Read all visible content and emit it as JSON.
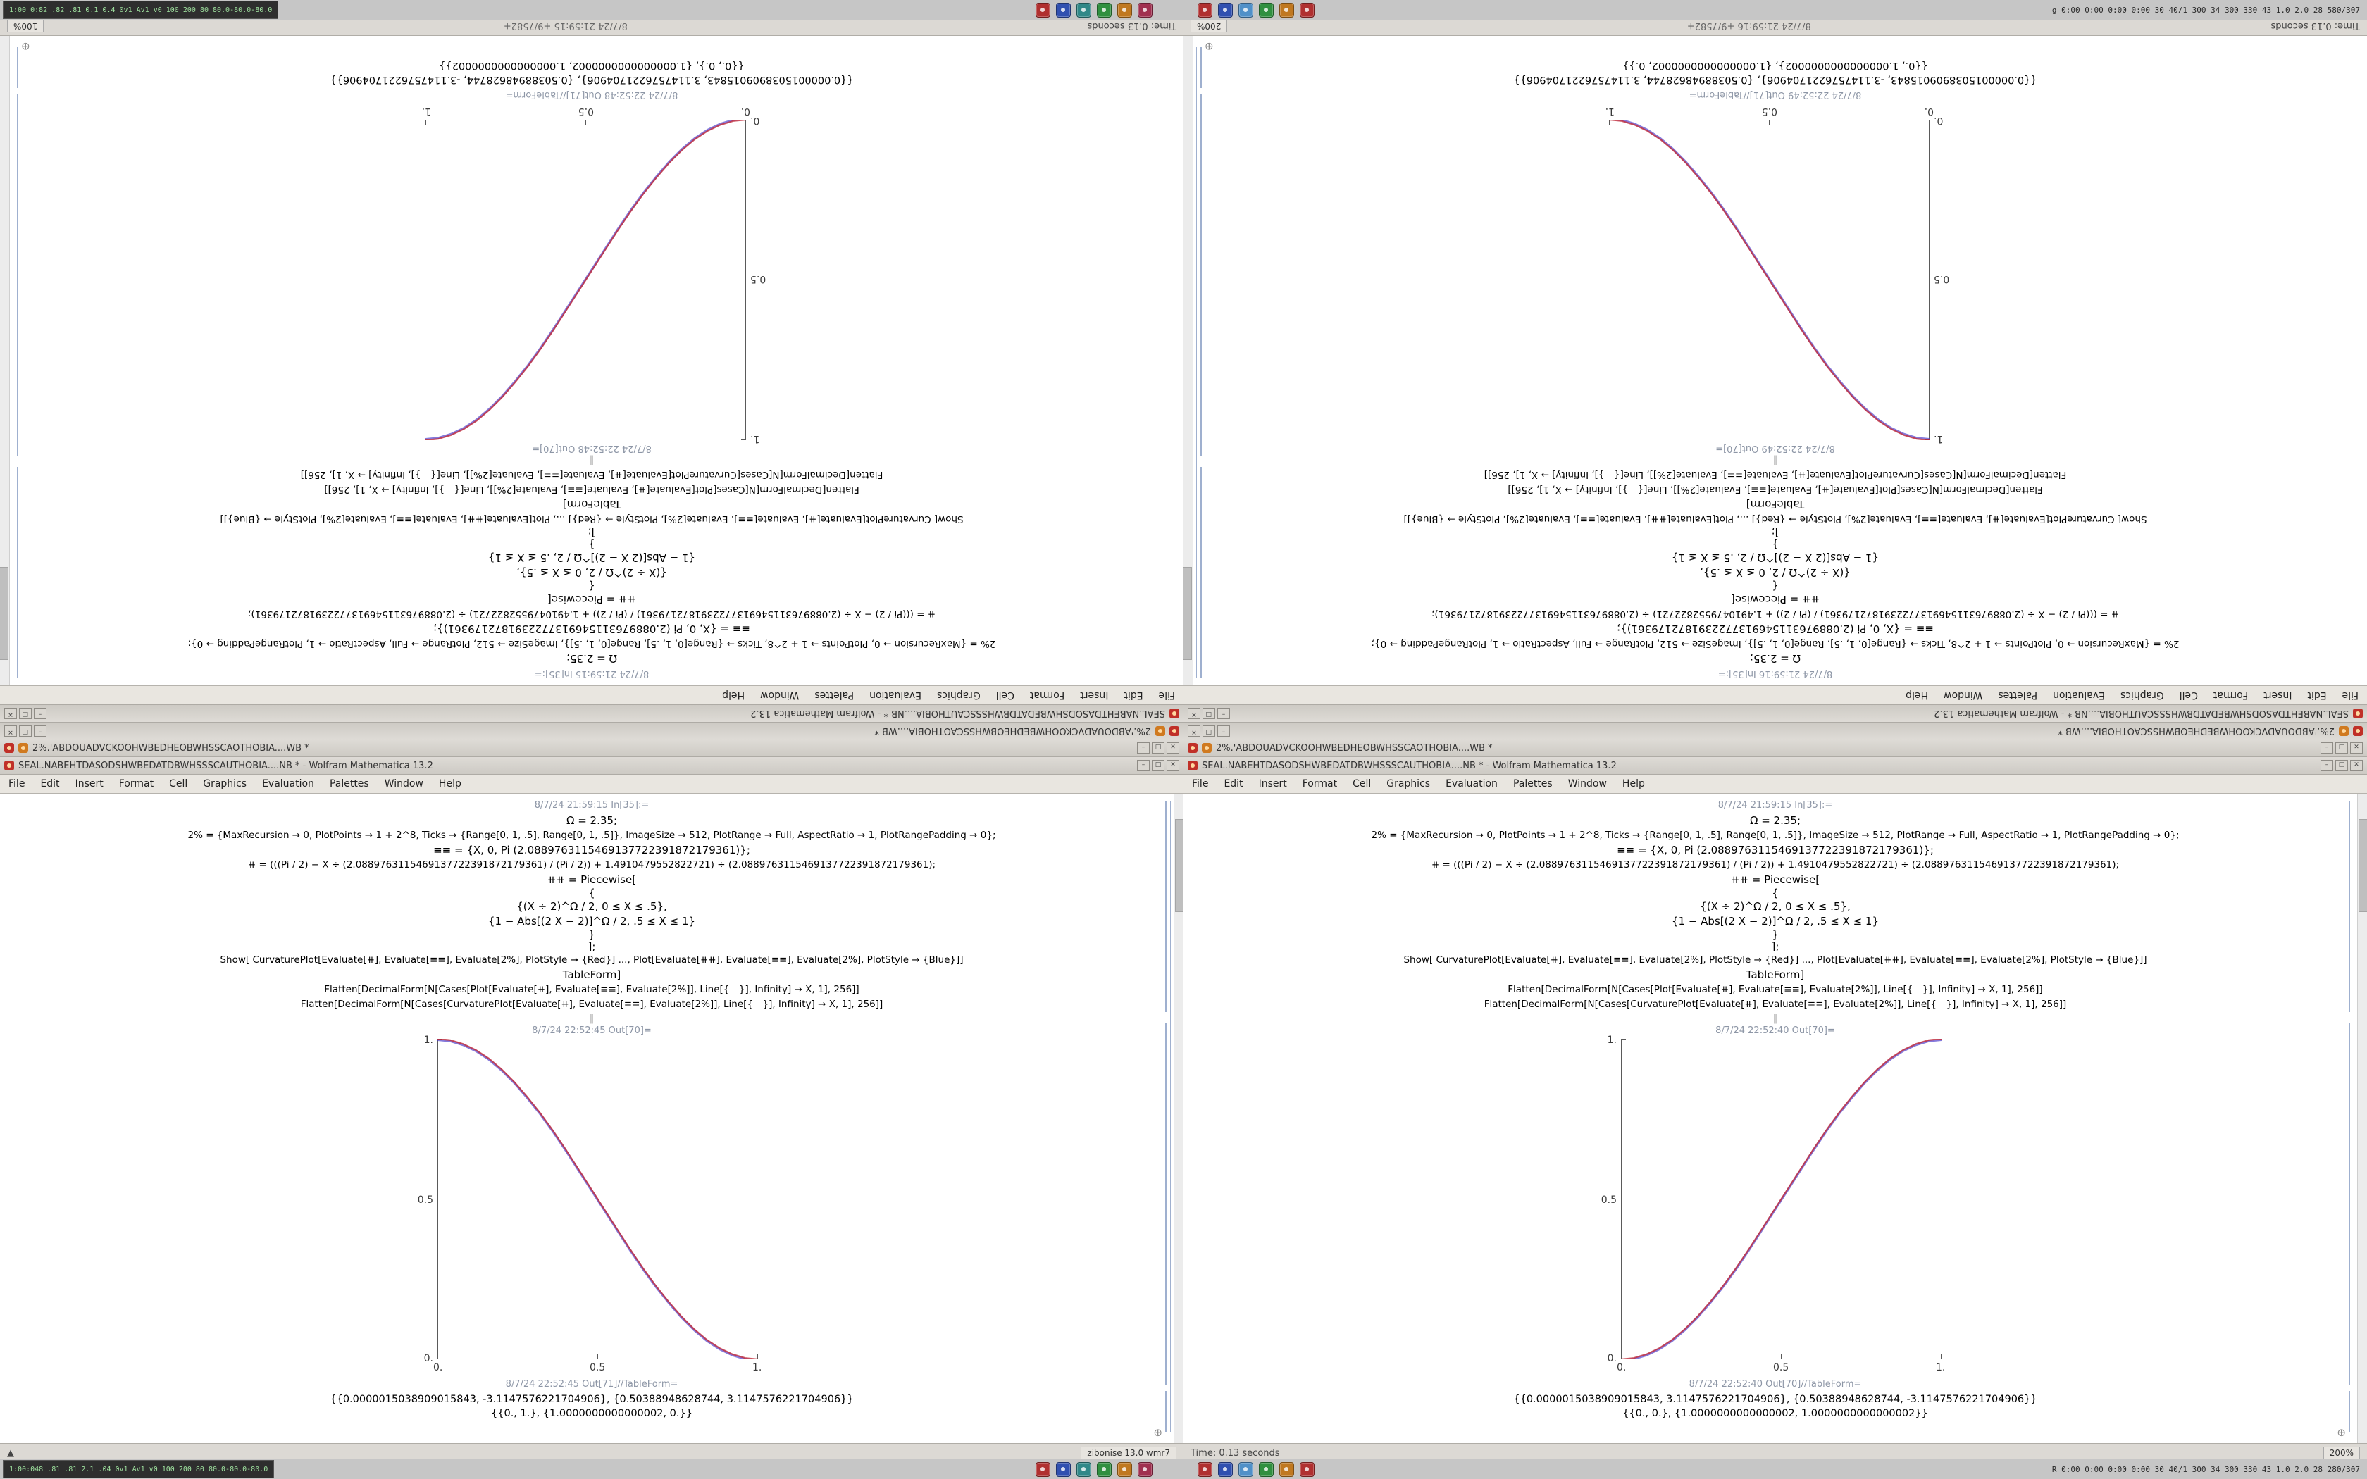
{
  "desktop": {
    "bg": "#c9c9c9"
  },
  "taskbars": {
    "top": {
      "left_text": "1:00 0:82 .82 .81 0.1 0.4 0v1 Av1 v0 100 200 80 80.0-80.0-80.0",
      "right_text": "g  0:00 0:00 0:00 0:00  30 40/1 300 34 300 330 43 1.0 2.0 28 580/307",
      "icon_colors": [
        "#b03030",
        "#3050b0",
        "#308888",
        "#309040",
        "#c07820",
        "#a03050"
      ],
      "icon_colors2": [
        "#b03030",
        "#3050b0",
        "#5090c8",
        "#309040",
        "#c07820",
        "#b03030"
      ]
    },
    "bottom": {
      "left_text": "1:00:048 .81 .81 2.1 .04 0v1 Av1 v0 100 200 80 80.0-80.0-80.0",
      "right_text": "R  0:00 0:00 0:00 0:00  30 40/1 300 34 300 330 43 1.0 2.0 28 280/307",
      "icon_colors": [
        "#b03030",
        "#3050b0",
        "#308888",
        "#309040",
        "#c07820",
        "#a03050"
      ],
      "icon_colors2": [
        "#b03030",
        "#3050b0",
        "#5090c8",
        "#309040",
        "#c07820",
        "#b03030"
      ]
    }
  },
  "shared": {
    "menu": [
      "File",
      "Edit",
      "Insert",
      "Format",
      "Cell",
      "Graphics",
      "Evaluation",
      "Palettes",
      "Window",
      "Help"
    ],
    "controls": {
      "min": "–",
      "max": "□",
      "close": "✕"
    },
    "plus_glyph": "⊕",
    "divider": "‖",
    "code_lines": [
      "Ω = 2.35;",
      "2% = {MaxRecursion → 0, PlotPoints → 1 + 2^8, Ticks → {Range[0, 1, .5], Range[0, 1, .5]}, ImageSize → 512, PlotRange → Full, AspectRatio → 1, PlotRangePadding → 0};",
      "≡≡ = {X, 0, Pi (2.0889763115469137722391872179361)};",
      "⧺ = (((Pi / 2) − X ÷ (2.0889763115469137722391872179361) / (Pi / 2)) + 1.4910479552822721) ÷ (2.0889763115469137722391872179361);",
      "⧺⧺ = Piecewise[",
      "{",
      "{(X ÷ 2)^Ω / 2, 0 ≤ X ≤ .5},",
      "{1 − Abs[(2 X − 2)]^Ω / 2, .5 ≤ X ≤ 1}",
      "}",
      "];",
      "Show[  CurvaturePlot[Evaluate[⧺], Evaluate[≡≡], Evaluate[2%], PlotStyle → {Red}]  ...,  Plot[Evaluate[⧺⧺], Evaluate[≡≡], Evaluate[2%], PlotStyle → {Blue}]]",
      "TableForm]",
      "Flatten[DecimalForm[N[Cases[Plot[Evaluate[⧺], Evaluate[≡≡], Evaluate[2%]], Line[{__}], Infinity] → X, 1], 256]]",
      "Flatten[DecimalForm[N[Cases[CurvaturePlot[Evaluate[⧺], Evaluate[≡≡], Evaluate[2%]], Line[{__}], Infinity] → X, 1], 256]]"
    ]
  },
  "windows": [
    {
      "rot": "1",
      "plot_dir": "up",
      "title1": "2%.'ABDOUADVCKOOHWBEDHEOBWHSSCAOTHOBIA....WB *",
      "title2": "SEAL.NABEHTDASODSHWBEDATDBWHSSSCAUTHOBIA....NB * - Wolfram Mathematica 13.2",
      "in_label": "8/7/24 21:59:15 In[35]:=",
      "out_label": "8/7/24 22:52:48 Out[70]=",
      "tf_label": "8/7/24 22:52:48 Out[71]//TableForm=",
      "nums1": "{{0.0000015038909015843, 3.1147576221704906}, {0.50388948628744, -3.1147576221704906}}",
      "nums2": "{{0., 0.}, {1.0000000000000002, 1.0000000000000002}}",
      "status_left": "Time: 0.13 seconds",
      "status_center": "8/7/24 21:59:15   +9/7582+",
      "status_right": "100%"
    },
    {
      "rot": "1",
      "plot_dir": "down",
      "title1": "2%.'ABDOUADVCKOOHWBEDHEOBWHSSCAOTHOBIA....WB *",
      "title2": "SEAL.NABEHTDASODSHWBEDATDBWHSSSCAUTHOBIA....NB * - Wolfram Mathematica 13.2",
      "in_label": "8/7/24 21:59:16 In[35]:=",
      "out_label": "8/7/24 22:52:49 Out[70]=",
      "tf_label": "8/7/24 22:52:49 Out[71]//TableForm=",
      "nums1": "{{0.0000015038909015843, -3.1147576221704906}, {0.50388948628744, 3.1147576221704906}}",
      "nums2": "{{0., 1.0000000000000002}, {1.0000000000000002, 0.}}",
      "status_left": "Time: 0.13 seconds",
      "status_center": "8/7/24 21:59:16   +9/7582+",
      "status_right": "200%"
    },
    {
      "rot": "0",
      "plot_dir": "down",
      "title1": "2%.'ABDOUADVCKOOHWBEDHEOBWHSSCAOTHOBIA....WB *",
      "title2": "SEAL.NABEHTDASODSHWBEDATDBWHSSSCAUTHOBIA....NB * - Wolfram Mathematica 13.2",
      "in_label": "8/7/24 21:59:15 In[35]:=",
      "out_label": "8/7/24 22:52:45 Out[70]=",
      "tf_label": "8/7/24 22:52:45 Out[71]//TableForm=",
      "nums1": "{{0.0000015038909015843, -3.1147576221704906}, {0.50388948628744, 3.1147576221704906}}",
      "nums2": "{{0., 1.}, {1.0000000000000002, 0.}}",
      "status_left": "▲",
      "status_center": "",
      "status_right": "zibonise 13.0 wmr7"
    },
    {
      "rot": "0",
      "plot_dir": "up",
      "title1": "2%.'ABDOUADVCKOOHWBEDHEOBWHSSCAOTHOBIA....WB *",
      "title2": "SEAL.NABEHTDASODSHWBEDATDBWHSSSCAUTHOBIA....NB * - Wolfram Mathematica 13.2",
      "in_label": "8/7/24 21:59:15 In[35]:=",
      "out_label": "8/7/24 22:52:40 Out[70]=",
      "tf_label": "8/7/24 22:52:40 Out[70]//TableForm=",
      "nums1": "{{0.0000015038909015843, 3.1147576221704906}, {0.50388948628744, -3.1147576221704906}}",
      "nums2": "{{0., 0.}, {1.0000000000000002, 1.0000000000000002}}",
      "status_left": "Time: 0.13 seconds",
      "status_center": "",
      "status_right": "200%"
    }
  ],
  "chart_data": {
    "type": "line",
    "title": "",
    "xlabel": "",
    "ylabel": "",
    "x_range": [
      0,
      1
    ],
    "y_range": [
      0,
      1
    ],
    "x_ticks": [
      "0.",
      "0.5",
      "1."
    ],
    "y_ticks": [
      "0.",
      "0.5",
      "1."
    ],
    "axes": "left-bottom",
    "grid": false,
    "legend": false,
    "series": [
      {
        "name": "CurvaturePlot",
        "color": "#c02a3a"
      },
      {
        "name": "Plot",
        "color": "#4433c8"
      }
    ],
    "plots": [
      {
        "window": "top-left",
        "direction": "up",
        "start": [
          0,
          0
        ],
        "end": [
          1,
          1
        ]
      },
      {
        "window": "top-right",
        "direction": "down",
        "start": [
          0,
          1
        ],
        "end": [
          1,
          0
        ]
      },
      {
        "window": "bottom-left",
        "direction": "down",
        "start": [
          0,
          1
        ],
        "end": [
          1,
          0
        ]
      },
      {
        "window": "bottom-right",
        "direction": "up",
        "start": [
          0,
          0
        ],
        "end": [
          1,
          1
        ]
      }
    ],
    "ease_points": [
      [
        0,
        0
      ],
      [
        0.04,
        0.004
      ],
      [
        0.08,
        0.016
      ],
      [
        0.12,
        0.035
      ],
      [
        0.16,
        0.061
      ],
      [
        0.2,
        0.095
      ],
      [
        0.24,
        0.135
      ],
      [
        0.28,
        0.181
      ],
      [
        0.32,
        0.231
      ],
      [
        0.36,
        0.286
      ],
      [
        0.4,
        0.345
      ],
      [
        0.44,
        0.407
      ],
      [
        0.48,
        0.469
      ],
      [
        0.52,
        0.531
      ],
      [
        0.56,
        0.593
      ],
      [
        0.6,
        0.655
      ],
      [
        0.64,
        0.714
      ],
      [
        0.68,
        0.769
      ],
      [
        0.72,
        0.819
      ],
      [
        0.76,
        0.865
      ],
      [
        0.8,
        0.905
      ],
      [
        0.84,
        0.939
      ],
      [
        0.88,
        0.965
      ],
      [
        0.92,
        0.984
      ],
      [
        0.96,
        0.996
      ],
      [
        1,
        1
      ]
    ]
  }
}
